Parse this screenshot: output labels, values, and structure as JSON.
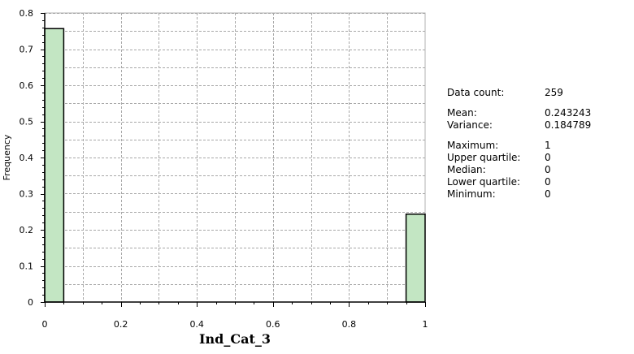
{
  "chart_data": {
    "type": "bar",
    "bins": [
      {
        "x0": 0.0,
        "x1": 0.05,
        "value": 0.756757
      },
      {
        "x0": 0.95,
        "x1": 1.0,
        "value": 0.243243
      }
    ],
    "xlabel": "Ind_Cat_3",
    "ylabel": "Frequency",
    "xlim": [
      0,
      1
    ],
    "ylim": [
      0,
      0.8
    ],
    "x_ticks": [
      "0",
      "0.2",
      "0.4",
      "0.6",
      "0.8",
      "1"
    ],
    "y_ticks": [
      "0",
      "0.1",
      "0.2",
      "0.3",
      "0.4",
      "0.5",
      "0.6",
      "0.7",
      "0.8"
    ],
    "grid": true,
    "bar_fill": "#c3e6c3",
    "bar_stroke": "#000000"
  },
  "stats": {
    "data_count": {
      "label": "Data count:",
      "value": "259"
    },
    "mean": {
      "label": "Mean:",
      "value": "0.243243"
    },
    "variance": {
      "label": "Variance:",
      "value": "0.184789"
    },
    "maximum": {
      "label": "Maximum:",
      "value": "1"
    },
    "upper_quartile": {
      "label": "Upper quartile:",
      "value": "0"
    },
    "median": {
      "label": "Median:",
      "value": "0"
    },
    "lower_quartile": {
      "label": "Lower quartile:",
      "value": "0"
    },
    "minimum": {
      "label": "Minimum:",
      "value": "0"
    }
  }
}
